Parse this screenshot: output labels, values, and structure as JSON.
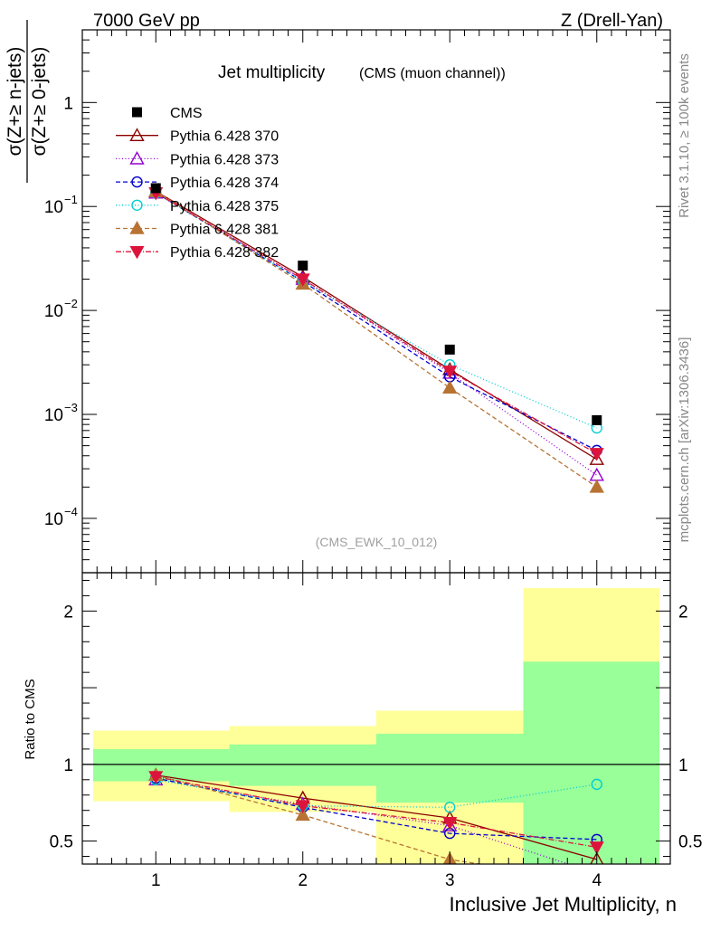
{
  "header": {
    "left": "7000 GeV pp",
    "right": "Z (Drell-Yan)"
  },
  "side_labels": {
    "rivet": "Rivet 3.1.10, ≥ 100k events",
    "mcplots": "mcplots.cern.ch [arXiv:1306.3436]"
  },
  "chart_data": {
    "type": "scatter",
    "title": "Jet multiplicity",
    "subtitle": "(CMS (muon channel))",
    "analysis_label": "(CMS_EWK_10_012)",
    "xlabel": "Inclusive Jet Multiplicity, n",
    "ylabel_num": "σ(Z+≥ n-jets)",
    "ylabel_den": "σ(Z+≥ 0-jets)",
    "ratio_ylabel": "Ratio to CMS",
    "xlim": [
      0.5,
      4.5
    ],
    "ylim": [
      3e-05,
      5
    ],
    "yscale": "log",
    "ratio_ylim": [
      0.35,
      2.25
    ],
    "x": [
      1,
      2,
      3,
      4
    ],
    "xticks": [
      "1",
      "2",
      "3",
      "4"
    ],
    "yticks_main": [
      {
        "value": 1,
        "label": "1"
      },
      {
        "value": 0.1,
        "label": "10",
        "exp": "−1"
      },
      {
        "value": 0.01,
        "label": "10",
        "exp": "−2"
      },
      {
        "value": 0.001,
        "label": "10",
        "exp": "−3"
      },
      {
        "value": 0.0001,
        "label": "10",
        "exp": "−4"
      }
    ],
    "yticks_ratio": [
      {
        "value": 0.5,
        "label": "0.5"
      },
      {
        "value": 1,
        "label": "1"
      },
      {
        "value": 2,
        "label": "2"
      }
    ],
    "legend_position": "top-left",
    "data": {
      "name": "CMS",
      "values": [
        0.15,
        0.027,
        0.0042,
        0.00088
      ],
      "bands_yellow": [
        [
          0.76,
          1.22
        ],
        [
          0.69,
          1.25
        ],
        [
          0.33,
          1.35
        ],
        [
          0.33,
          2.15
        ]
      ],
      "bands_green": [
        [
          0.89,
          1.1
        ],
        [
          0.86,
          1.13
        ],
        [
          0.75,
          1.2
        ],
        [
          0.33,
          1.67
        ]
      ]
    },
    "series": [
      {
        "name": "Pythia 6.428 370",
        "color": "#8b0000",
        "dash": "",
        "marker": "tri-open",
        "values": [
          0.14,
          0.021,
          0.0027,
          0.00037
        ],
        "ratio": [
          0.93,
          0.78,
          0.65,
          0.38
        ]
      },
      {
        "name": "Pythia 6.428 373",
        "color": "#9400d3",
        "dash": "1,2.5",
        "marker": "tri-open",
        "values": [
          0.135,
          0.02,
          0.0025,
          0.00026
        ],
        "ratio": [
          0.9,
          0.74,
          0.6,
          0.29
        ]
      },
      {
        "name": "Pythia 6.428 374",
        "color": "#0000cd",
        "dash": "5,3",
        "marker": "circ-open",
        "values": [
          0.135,
          0.019,
          0.0023,
          0.00045
        ],
        "ratio": [
          0.91,
          0.72,
          0.55,
          0.51
        ]
      },
      {
        "name": "Pythia 6.428 375",
        "color": "#00ced1",
        "dash": "1,2.5",
        "marker": "circ-open",
        "values": [
          0.135,
          0.019,
          0.003,
          0.00074
        ],
        "ratio": [
          0.9,
          0.73,
          0.72,
          0.87
        ]
      },
      {
        "name": "Pythia 6.428 381",
        "color": "#b87333",
        "dash": "5,3",
        "marker": "tri-fill",
        "values": [
          0.14,
          0.018,
          0.0018,
          0.0002
        ],
        "ratio": [
          0.93,
          0.67,
          0.38,
          0.23
        ]
      },
      {
        "name": "Pythia 6.428 382",
        "color": "#dc143c",
        "dash": "6,2,1,2",
        "marker": "tridown-fill",
        "values": [
          0.135,
          0.02,
          0.0026,
          0.00042
        ],
        "ratio": [
          0.92,
          0.73,
          0.62,
          0.46
        ]
      }
    ]
  }
}
